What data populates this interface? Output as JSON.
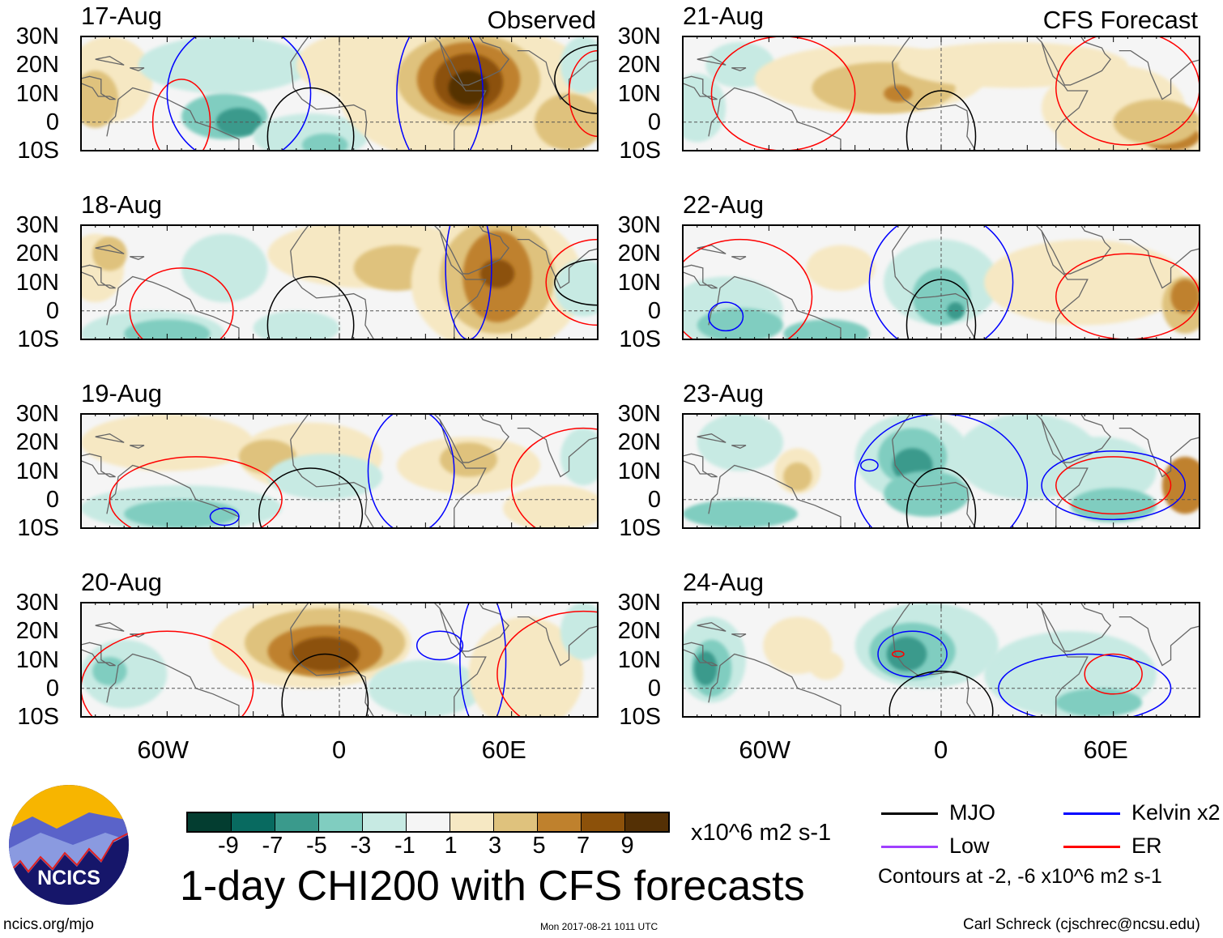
{
  "panels": [
    {
      "date": "17-Aug",
      "label": "Observed"
    },
    {
      "date": "18-Aug"
    },
    {
      "date": "19-Aug"
    },
    {
      "date": "20-Aug"
    },
    {
      "date": "21-Aug",
      "label": "CFS Forecast"
    },
    {
      "date": "22-Aug"
    },
    {
      "date": "23-Aug"
    },
    {
      "date": "24-Aug"
    }
  ],
  "lat_labels": [
    "30N",
    "20N",
    "10N",
    "0",
    "10S"
  ],
  "lon_labels": [
    "60W",
    "0",
    "60E"
  ],
  "colorbar": {
    "colors": [
      "#033d30",
      "#086a60",
      "#3a9a8c",
      "#80cdc0",
      "#c7eae3",
      "#f5f5f5",
      "#f6e8c3",
      "#dfc27d",
      "#bf812d",
      "#8c510a",
      "#543005"
    ],
    "ticks": [
      "-9",
      "-7",
      "-5",
      "-3",
      "-1",
      "1",
      "3",
      "5",
      "7",
      "9"
    ],
    "units": "x10^6 m2 s-1"
  },
  "title": "1-day CHI200 with CFS forecasts",
  "legend": [
    {
      "name": "MJO",
      "color": "#000000"
    },
    {
      "name": "Kelvin x2",
      "color": "#0000ff"
    },
    {
      "name": "Low",
      "color": "#a040ff"
    },
    {
      "name": "ER",
      "color": "#ff0000"
    }
  ],
  "contours_note": "Contours at -2, -6 x10^6 m2 s-1",
  "logo_text": "NCICS",
  "footer": {
    "left": "ncics.org/mjo",
    "center": "Mon 2017-08-21 1011 UTC",
    "right": "Carl Schreck (cjschrec@ncsu.edu)"
  },
  "chart_data": {
    "type": "heatmap",
    "title": "1-day CHI200 with CFS forecasts",
    "variable": "CHI200 anomaly",
    "units": "x10^6 m2 s-1",
    "lon_range": [
      -90,
      90
    ],
    "lat_range": [
      -10,
      30
    ],
    "panels": [
      "17-Aug (Observed)",
      "18-Aug",
      "19-Aug",
      "20-Aug",
      "21-Aug (CFS Forecast)",
      "22-Aug",
      "23-Aug",
      "24-Aug"
    ],
    "levels": [
      -9,
      -7,
      -5,
      -3,
      -1,
      1,
      3,
      5,
      7,
      9
    ],
    "contour_levels": [
      -2,
      -6
    ]
  }
}
